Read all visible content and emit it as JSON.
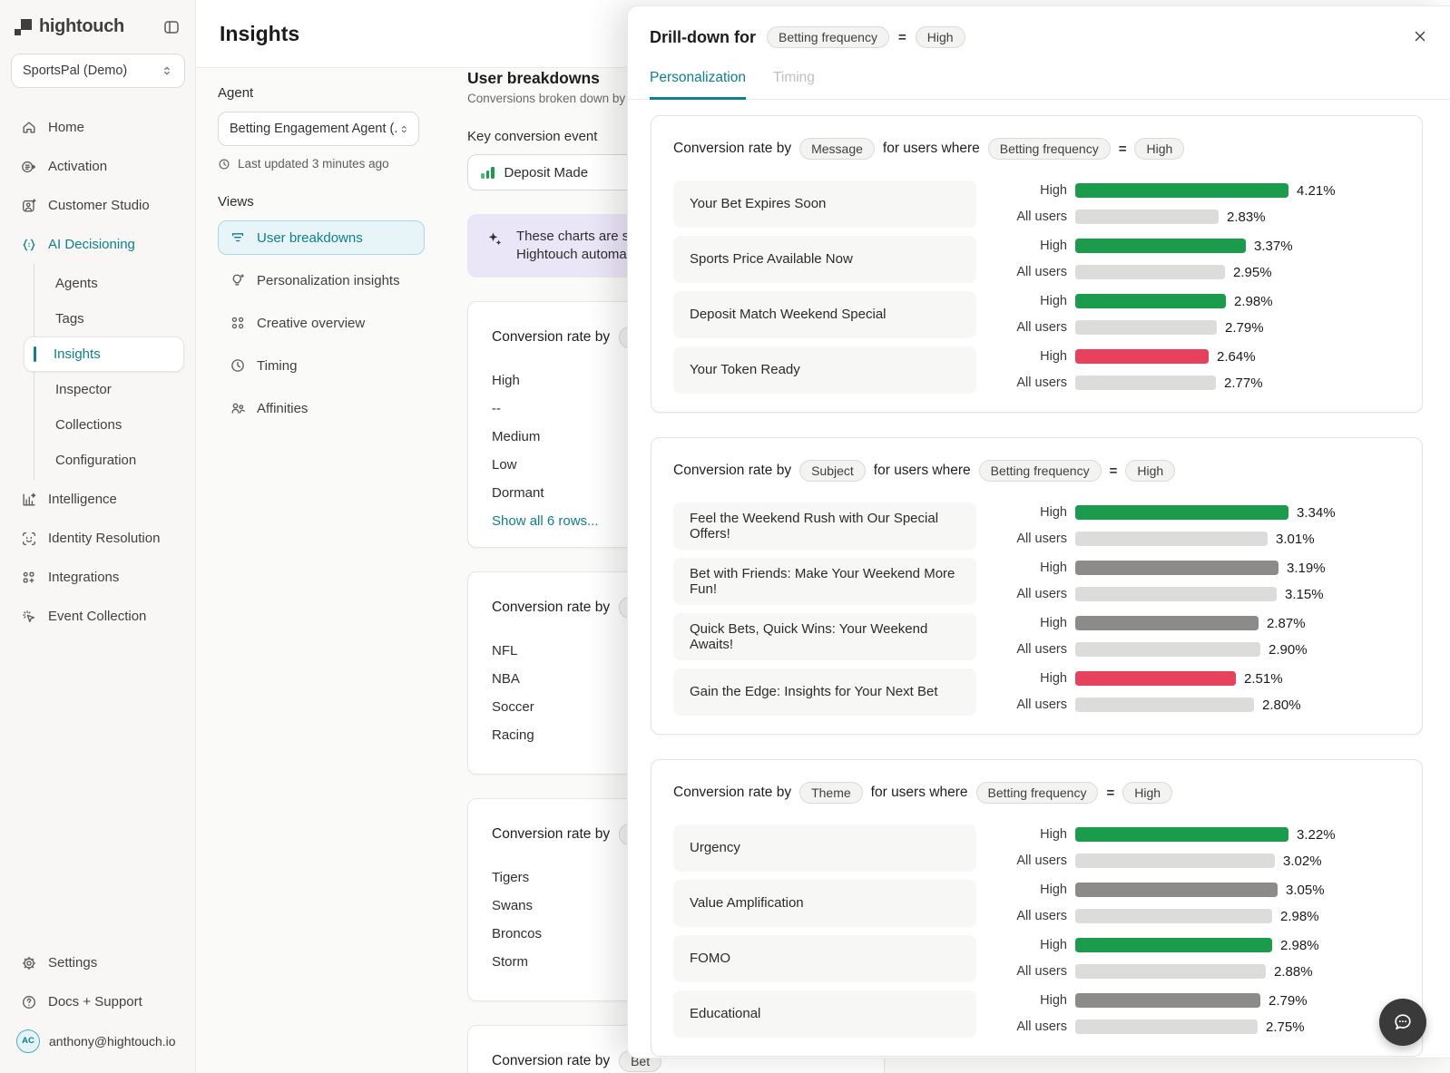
{
  "colors": {
    "green": "#1b9c4c",
    "red": "#e8415e",
    "gray": "#8d8b89",
    "all_users_bar": "#dcdcdb",
    "accent_teal": "#0d7f90"
  },
  "sidebar": {
    "logo_text": "hightouch",
    "workspace": "SportsPal (Demo)",
    "nav": [
      {
        "id": "home",
        "label": "Home",
        "icon": "home-icon"
      },
      {
        "id": "activation",
        "label": "Activation",
        "icon": "activation-icon"
      },
      {
        "id": "customer-studio",
        "label": "Customer Studio",
        "icon": "customer-studio-icon"
      },
      {
        "id": "ai-decisioning",
        "label": "AI Decisioning",
        "icon": "ai-decisioning-icon",
        "active_section": true
      }
    ],
    "ai_children": [
      {
        "id": "agents",
        "label": "Agents"
      },
      {
        "id": "tags",
        "label": "Tags"
      },
      {
        "id": "insights",
        "label": "Insights",
        "active": true
      },
      {
        "id": "inspector",
        "label": "Inspector"
      },
      {
        "id": "collections",
        "label": "Collections"
      },
      {
        "id": "configuration",
        "label": "Configuration"
      }
    ],
    "nav_lower": [
      {
        "id": "intelligence",
        "label": "Intelligence",
        "icon": "intelligence-icon"
      },
      {
        "id": "identity-resolution",
        "label": "Identity Resolution",
        "icon": "identity-resolution-icon"
      },
      {
        "id": "integrations",
        "label": "Integrations",
        "icon": "integrations-icon"
      },
      {
        "id": "event-collection",
        "label": "Event Collection",
        "icon": "event-collection-icon"
      }
    ],
    "footer": [
      {
        "id": "settings",
        "label": "Settings",
        "icon": "gear-icon"
      },
      {
        "id": "docs-support",
        "label": "Docs + Support",
        "icon": "help-icon"
      }
    ],
    "user": {
      "email": "anthony@hightouch.io",
      "initials": "AC"
    }
  },
  "page": {
    "title": "Insights"
  },
  "controls": {
    "agent_label": "Agent",
    "agent_value": "Betting Engagement Agent (...",
    "last_updated": "Last updated 3 minutes ago",
    "views_label": "Views",
    "views": [
      {
        "id": "user-breakdowns",
        "label": "User breakdowns",
        "icon": "funnel-icon",
        "active": true
      },
      {
        "id": "personalization-insights",
        "label": "Personalization insights",
        "icon": "lightbulb-icon"
      },
      {
        "id": "creative-overview",
        "label": "Creative overview",
        "icon": "grid-icon"
      },
      {
        "id": "timing",
        "label": "Timing",
        "icon": "clock-icon"
      },
      {
        "id": "affinities",
        "label": "Affinities",
        "icon": "people-icon"
      }
    ]
  },
  "breakdowns": {
    "title": "User breakdowns",
    "subtitle": "Conversions broken down by user",
    "key_event_label": "Key conversion event",
    "key_event_value": "Deposit Made",
    "banner_line1": "These charts are so",
    "banner_line2": "Hightouch automati",
    "cards": [
      {
        "title": "Conversion rate by",
        "pill": "Bet",
        "rows": [
          "High",
          "--",
          "Medium",
          "Low",
          "Dormant"
        ],
        "link": "Show all 6 rows..."
      },
      {
        "title": "Conversion rate by",
        "pill": "Pre",
        "rows": [
          "NFL",
          "NBA",
          "Soccer",
          "Racing"
        ]
      },
      {
        "title": "Conversion rate by",
        "pill": "Tea",
        "rows": [
          "Tigers",
          "Swans",
          "Broncos",
          "Storm"
        ]
      },
      {
        "title": "Conversion rate by",
        "pill": "Bet",
        "rows": []
      }
    ]
  },
  "drilldown": {
    "title": "Drill-down for",
    "dimension_pill": "Betting frequency",
    "equals": "=",
    "value_pill": "High",
    "tabs": [
      {
        "label": "Personalization",
        "active": true
      },
      {
        "label": "Timing",
        "active": false
      }
    ],
    "series_labels": {
      "segment": "High",
      "baseline": "All users"
    },
    "chart_data": [
      {
        "type": "bar",
        "title_prefix": "Conversion rate by",
        "group_by": "Message",
        "title_middle": "for users where",
        "filter_dimension": "Betting frequency",
        "equals": "=",
        "filter_value": "High",
        "rows": [
          {
            "label": "Your Bet Expires Soon",
            "high_pct": 4.21,
            "all_users_pct": 2.83,
            "bar_color": "green"
          },
          {
            "label": "Sports Price Available Now",
            "high_pct": 3.37,
            "all_users_pct": 2.95,
            "bar_color": "green"
          },
          {
            "label": "Deposit Match Weekend Special",
            "high_pct": 2.98,
            "all_users_pct": 2.79,
            "bar_color": "green"
          },
          {
            "label": "Your Token Ready",
            "high_pct": 2.64,
            "all_users_pct": 2.77,
            "bar_color": "red"
          }
        ]
      },
      {
        "type": "bar",
        "title_prefix": "Conversion rate by",
        "group_by": "Subject",
        "title_middle": "for users where",
        "filter_dimension": "Betting frequency",
        "equals": "=",
        "filter_value": "High",
        "rows": [
          {
            "label": "Feel the Weekend Rush with Our Special Offers!",
            "high_pct": 3.34,
            "all_users_pct": 3.01,
            "bar_color": "green"
          },
          {
            "label": "Bet with Friends: Make Your Weekend More Fun!",
            "high_pct": 3.19,
            "all_users_pct": 3.15,
            "bar_color": "gray"
          },
          {
            "label": "Quick Bets, Quick Wins: Your Weekend Awaits!",
            "high_pct": 2.87,
            "all_users_pct": 2.9,
            "bar_color": "gray"
          },
          {
            "label": "Gain the Edge: Insights for Your Next Bet",
            "high_pct": 2.51,
            "all_users_pct": 2.8,
            "bar_color": "red"
          }
        ]
      },
      {
        "type": "bar",
        "title_prefix": "Conversion rate by",
        "group_by": "Theme",
        "title_middle": "for users where",
        "filter_dimension": "Betting frequency",
        "equals": "=",
        "filter_value": "High",
        "rows": [
          {
            "label": "Urgency",
            "high_pct": 3.22,
            "all_users_pct": 3.02,
            "bar_color": "green"
          },
          {
            "label": "Value Amplification",
            "high_pct": 3.05,
            "all_users_pct": 2.98,
            "bar_color": "gray"
          },
          {
            "label": "FOMO",
            "high_pct": 2.98,
            "all_users_pct": 2.88,
            "bar_color": "green"
          },
          {
            "label": "Educational",
            "high_pct": 2.79,
            "all_users_pct": 2.75,
            "bar_color": "gray"
          }
        ]
      }
    ]
  }
}
